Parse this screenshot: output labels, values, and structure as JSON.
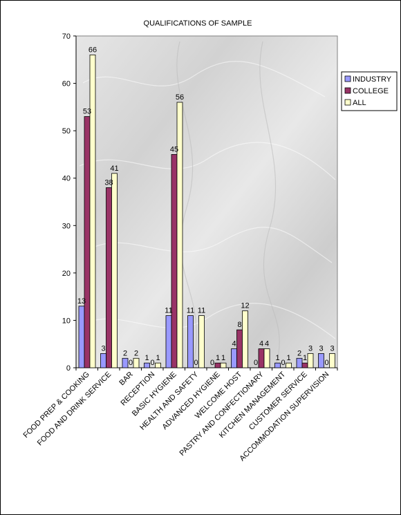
{
  "chart_data": {
    "type": "bar",
    "title": "QUALIFICATIONS OF SAMPLE",
    "xlabel": "",
    "ylabel": "",
    "ylim": [
      0,
      70
    ],
    "yticks": [
      0,
      10,
      20,
      30,
      40,
      50,
      60,
      70
    ],
    "grid": false,
    "legend_position": "right",
    "categories": [
      "FOOD PREP & COOKING",
      "FOOD AND DRINK SERVICE",
      "BAR",
      "RECEPTION",
      "BASIC HYGIENE",
      "HEALTH AND SAFETY",
      "ADVANCED HYGIENE",
      "WELCOME HOST",
      "PASTRY AND CONFECTIONARY",
      "KITCHEN MANAGEMENT",
      "CUSTOMER SERVICE",
      "ACCOMMODATION SUPERVISION"
    ],
    "series": [
      {
        "name": "INDUSTRY",
        "color": "#9999ff",
        "values": [
          13,
          3,
          2,
          1,
          11,
          11,
          0,
          4,
          0,
          1,
          2,
          3
        ]
      },
      {
        "name": "COLLEGE",
        "color": "#993366",
        "values": [
          53,
          38,
          0,
          0,
          45,
          0,
          1,
          8,
          4,
          0,
          1,
          0
        ]
      },
      {
        "name": "ALL",
        "color": "#ffffcc",
        "values": [
          66,
          41,
          2,
          1,
          56,
          11,
          1,
          12,
          4,
          1,
          3,
          3
        ]
      }
    ]
  }
}
